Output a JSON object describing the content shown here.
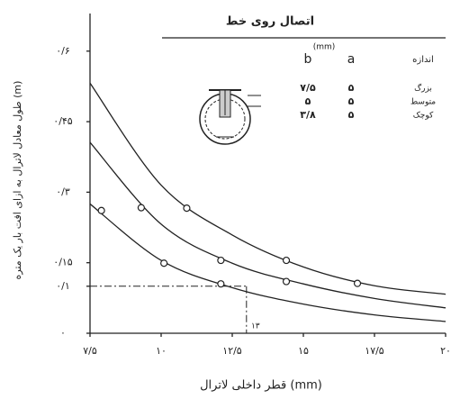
{
  "chart_data": {
    "type": "line",
    "x_label": "قطر داخلی لاترال (mm)",
    "y_label": "طول معادل لاترال به ازای افت بار یک متره (m)",
    "xlim": [
      7.5,
      20
    ],
    "ylim": [
      0,
      0.68
    ],
    "xticks": [
      {
        "value": 7.5,
        "label": "۷/۵"
      },
      {
        "value": 10,
        "label": "۱۰"
      },
      {
        "value": 12.5,
        "label": "۱۲/۵"
      },
      {
        "value": 15,
        "label": "۱۵"
      },
      {
        "value": 17.5,
        "label": "۱۷/۵"
      },
      {
        "value": 20,
        "label": "۲۰"
      }
    ],
    "yticks": [
      {
        "value": 0,
        "label": "۰"
      },
      {
        "value": 0.1,
        "label": "۰/۱"
      },
      {
        "value": 0.15,
        "label": "۰/۱۵"
      },
      {
        "value": 0.3,
        "label": "۰/۳"
      },
      {
        "value": 0.45,
        "label": "۰/۴۵"
      },
      {
        "value": 0.6,
        "label": "۰/۶"
      }
    ],
    "series": [
      {
        "color": "#222",
        "x": [
          7.5,
          10,
          12.5,
          15,
          17.5,
          20
        ],
        "values": [
          0.532,
          0.315,
          0.209,
          0.141,
          0.101,
          0.083
        ],
        "marker_x": [
          10.9,
          14.4,
          16.9
        ],
        "marker_values": [
          0.266,
          0.155,
          0.106
        ]
      },
      {
        "color": "#222",
        "x": [
          7.5,
          10,
          12.5,
          15,
          17.5,
          20
        ],
        "values": [
          0.406,
          0.232,
          0.149,
          0.105,
          0.074,
          0.054
        ],
        "marker_x": [
          9.3,
          12.1,
          14.4
        ],
        "marker_values": [
          0.267,
          0.155,
          0.11
        ]
      },
      {
        "color": "#222",
        "x": [
          7.5,
          10,
          12.5,
          15,
          17.5,
          20
        ],
        "values": [
          0.275,
          0.155,
          0.097,
          0.062,
          0.039,
          0.025
        ],
        "marker_x": [
          7.9,
          10.1,
          12.1
        ],
        "marker_values": [
          0.261,
          0.149,
          0.105
        ]
      }
    ],
    "reference": {
      "x": 13,
      "y": 0.1,
      "label": "۱۳"
    },
    "inset": {
      "title": "اتصال روی خط",
      "unit": "(mm)",
      "headers": [
        "اندازه",
        "a",
        "b"
      ],
      "rows": [
        [
          "بزرگ",
          "۵",
          "۷/۵"
        ],
        [
          "متوسط",
          "۵",
          "۵"
        ],
        [
          "کوچک",
          "۵",
          "۳/۸"
        ]
      ]
    }
  }
}
